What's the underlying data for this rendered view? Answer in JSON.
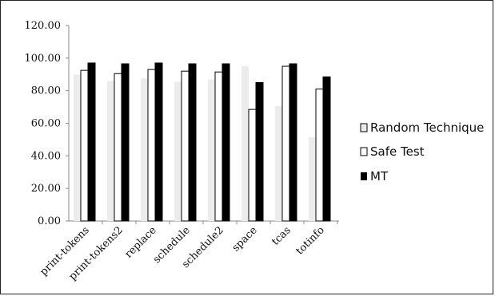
{
  "chart_data": {
    "type": "bar",
    "title": "",
    "xlabel": "",
    "ylabel": "",
    "categories": [
      "print-tokens",
      "print-tokens2",
      "replace",
      "schedule",
      "schedule2",
      "space",
      "tcas",
      "totinfo"
    ],
    "series": [
      {
        "name": "Random Technique",
        "values": [
          90.0,
          86.0,
          87.5,
          85.5,
          87.0,
          95.0,
          70.5,
          51.5
        ],
        "color": "#ececec"
      },
      {
        "name": "Safe Test",
        "values": [
          92.5,
          90.5,
          93.0,
          92.0,
          91.5,
          68.5,
          95.0,
          81.0
        ],
        "color": "#ffffff"
      },
      {
        "name": "MT",
        "values": [
          97.0,
          96.5,
          97.0,
          96.5,
          96.5,
          85.0,
          96.5,
          88.5
        ],
        "color": "#000000"
      }
    ],
    "yticks": [
      "0.00",
      "20.00",
      "40.00",
      "60.00",
      "80.00",
      "100.00",
      "120.00"
    ],
    "ylim": [
      0,
      120
    ],
    "grid": false,
    "legend_position": "right"
  }
}
